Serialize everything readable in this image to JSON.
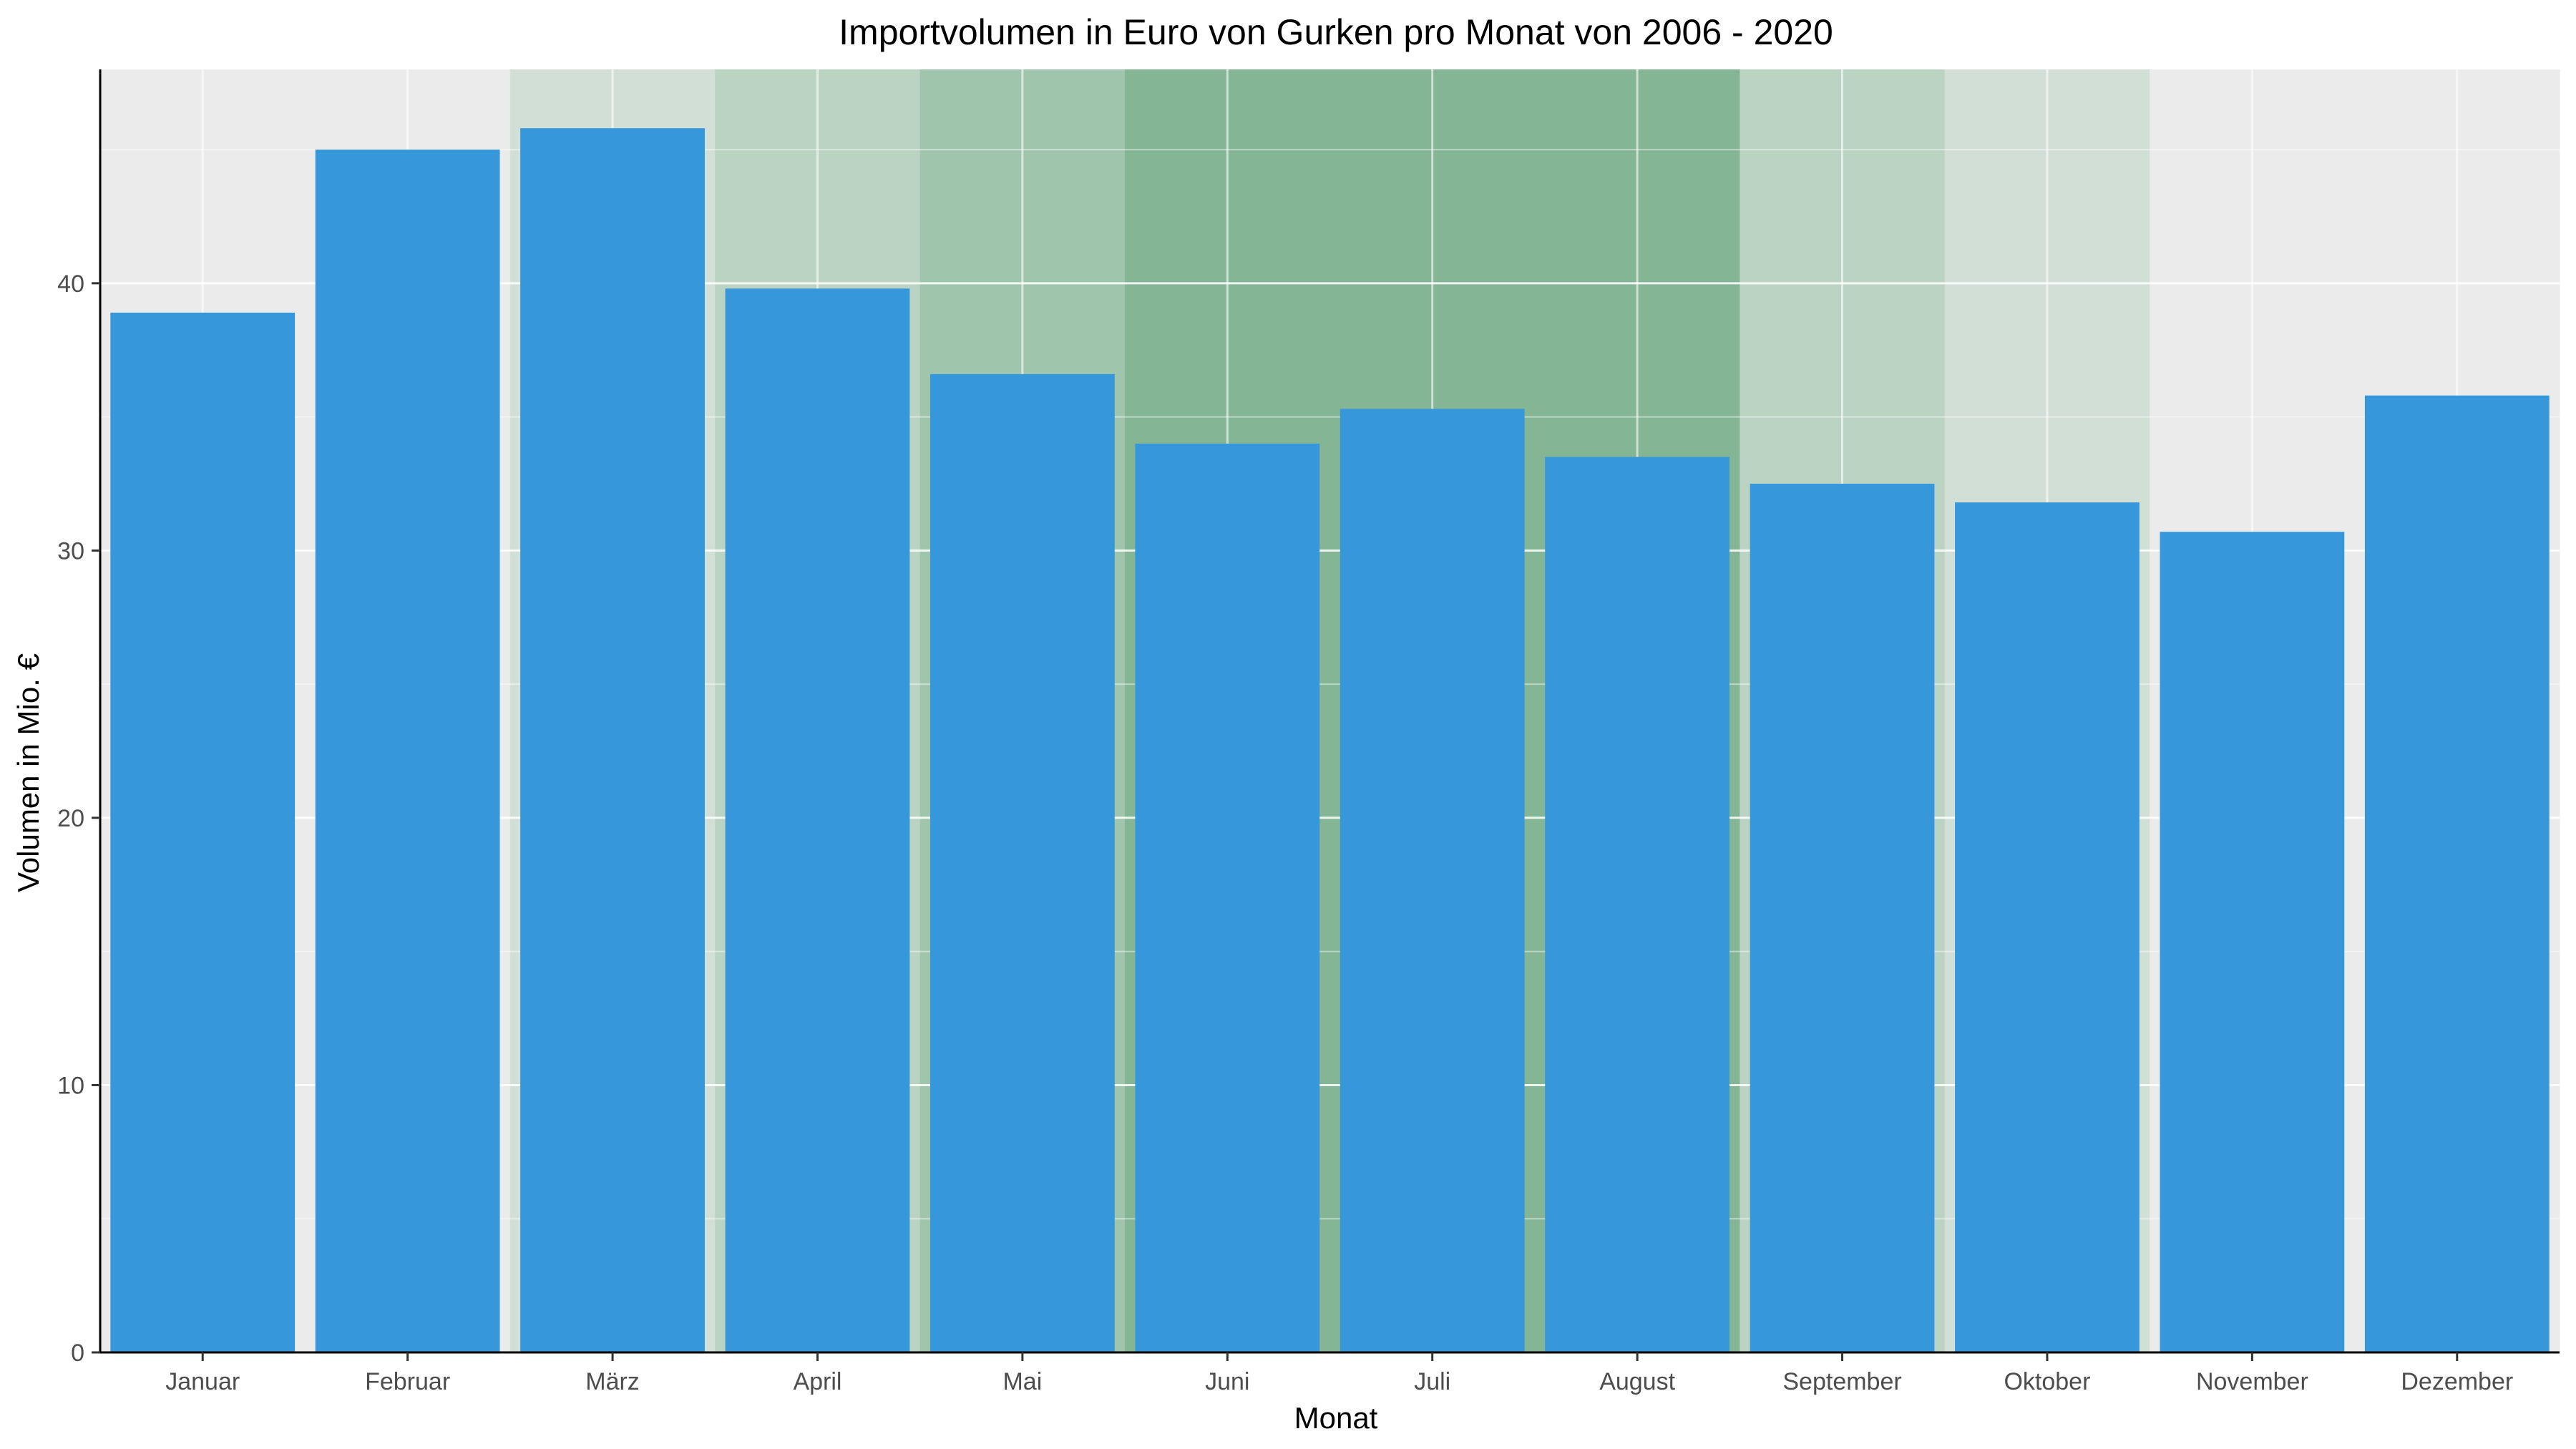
{
  "chart_data": {
    "type": "bar",
    "title": "Importvolumen in Euro von Gurken pro Monat von 2006 - 2020",
    "xlabel": "Monat",
    "ylabel": "Volumen in Mio. €",
    "categories": [
      "Januar",
      "Februar",
      "März",
      "April",
      "Mai",
      "Juni",
      "Juli",
      "August",
      "September",
      "Oktober",
      "November",
      "Dezember"
    ],
    "values": [
      38.9,
      45.0,
      45.8,
      39.8,
      36.6,
      34.0,
      35.3,
      33.5,
      32.5,
      31.8,
      30.7,
      35.8
    ],
    "season_intensity": [
      0,
      0,
      1,
      2,
      3,
      4,
      4,
      4,
      2,
      1,
      0,
      0
    ],
    "season_colors": [
      "#ebebeb",
      "#d2dfd7",
      "#bad3c3",
      "#a0c5ad",
      "#84b595"
    ],
    "bar_color": "#3697db",
    "ylim": [
      0,
      48
    ],
    "yticks": [
      0,
      10,
      20,
      30,
      40
    ],
    "grid": true
  }
}
